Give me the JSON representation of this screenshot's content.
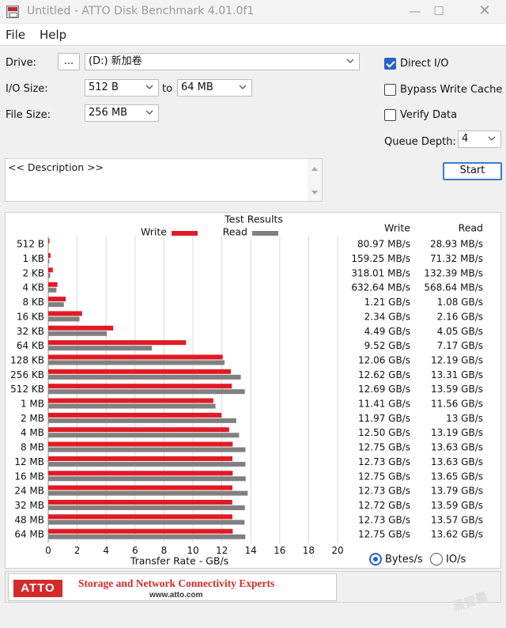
{
  "window": {
    "title": "Untitled - ATTO Disk Benchmark 4.01.0f1"
  },
  "menu": {
    "file": "File",
    "help": "Help"
  },
  "controls": {
    "drive_label": "Drive:",
    "browse_label": "...",
    "drive_value": "(D:) 新加卷",
    "io_size_label": "I/O Size:",
    "io_min": "512 B",
    "to_label": "to",
    "io_max": "64 MB",
    "file_size_label": "File Size:",
    "file_size": "256 MB",
    "direct_io": "Direct I/O",
    "bypass_write_cache": "Bypass Write Cache",
    "verify_data": "Verify Data",
    "queue_depth_label": "Queue Depth:",
    "queue_depth": "4",
    "start": "Start",
    "description": "<< Description >>"
  },
  "results": {
    "title": "Test Results",
    "legend_write": "Write",
    "legend_read": "Read",
    "col_write": "Write",
    "col_read": "Read",
    "rows": [
      {
        "size": "512 B",
        "write": "80.97 MB/s",
        "read": "28.93 MB/s"
      },
      {
        "size": "1 KB",
        "write": "159.25 MB/s",
        "read": "71.32 MB/s"
      },
      {
        "size": "2 KB",
        "write": "318.01 MB/s",
        "read": "132.39 MB/s"
      },
      {
        "size": "4 KB",
        "write": "632.64 MB/s",
        "read": "568.64 MB/s"
      },
      {
        "size": "8 KB",
        "write": "1.21 GB/s",
        "read": "1.08 GB/s"
      },
      {
        "size": "16 KB",
        "write": "2.34 GB/s",
        "read": "2.16 GB/s"
      },
      {
        "size": "32 KB",
        "write": "4.49 GB/s",
        "read": "4.05 GB/s"
      },
      {
        "size": "64 KB",
        "write": "9.52 GB/s",
        "read": "7.17 GB/s"
      },
      {
        "size": "128 KB",
        "write": "12.06 GB/s",
        "read": "12.19 GB/s"
      },
      {
        "size": "256 KB",
        "write": "12.62 GB/s",
        "read": "13.31 GB/s"
      },
      {
        "size": "512 KB",
        "write": "12.69 GB/s",
        "read": "13.59 GB/s"
      },
      {
        "size": "1 MB",
        "write": "11.41 GB/s",
        "read": "11.56 GB/s"
      },
      {
        "size": "2 MB",
        "write": "11.97 GB/s",
        "read": "13 GB/s"
      },
      {
        "size": "4 MB",
        "write": "12.50 GB/s",
        "read": "13.19 GB/s"
      },
      {
        "size": "8 MB",
        "write": "12.75 GB/s",
        "read": "13.63 GB/s"
      },
      {
        "size": "12 MB",
        "write": "12.73 GB/s",
        "read": "13.63 GB/s"
      },
      {
        "size": "16 MB",
        "write": "12.75 GB/s",
        "read": "13.65 GB/s"
      },
      {
        "size": "24 MB",
        "write": "12.73 GB/s",
        "read": "13.79 GB/s"
      },
      {
        "size": "32 MB",
        "write": "12.72 GB/s",
        "read": "13.59 GB/s"
      },
      {
        "size": "48 MB",
        "write": "12.73 GB/s",
        "read": "13.57 GB/s"
      },
      {
        "size": "64 MB",
        "write": "12.75 GB/s",
        "read": "13.62 GB/s"
      }
    ],
    "bytes_per_sec": "Bytes/s",
    "io_per_sec": "IO/s"
  },
  "chart_data": {
    "type": "bar",
    "orientation": "horizontal",
    "xlabel": "Transfer Rate - GB/s",
    "xlim": [
      0,
      20
    ],
    "xticks": [
      0,
      2,
      4,
      6,
      8,
      10,
      12,
      14,
      16,
      18,
      20
    ],
    "categories": [
      "512 B",
      "1 KB",
      "2 KB",
      "4 KB",
      "8 KB",
      "16 KB",
      "32 KB",
      "64 KB",
      "128 KB",
      "256 KB",
      "512 KB",
      "1 MB",
      "2 MB",
      "4 MB",
      "8 MB",
      "12 MB",
      "16 MB",
      "24 MB",
      "32 MB",
      "48 MB",
      "64 MB"
    ],
    "series": [
      {
        "name": "Write",
        "color": "#e01b24",
        "values": [
          0.08097,
          0.15925,
          0.31801,
          0.63264,
          1.21,
          2.34,
          4.49,
          9.52,
          12.06,
          12.62,
          12.69,
          11.41,
          11.97,
          12.5,
          12.75,
          12.73,
          12.75,
          12.73,
          12.72,
          12.73,
          12.75
        ]
      },
      {
        "name": "Read",
        "color": "#808080",
        "values": [
          0.02893,
          0.07132,
          0.13239,
          0.56864,
          1.08,
          2.16,
          4.05,
          7.17,
          12.19,
          13.31,
          13.59,
          11.56,
          13.0,
          13.19,
          13.63,
          13.63,
          13.65,
          13.79,
          13.59,
          13.57,
          13.62
        ]
      }
    ],
    "grid": true,
    "legend": "top"
  },
  "banner": {
    "logo": "ATTO",
    "tagline": "Storage and Network Connectivity Experts",
    "url": "www.atto.com"
  },
  "colors": {
    "write": "#e01b24",
    "read": "#808080",
    "accent": "#2563c9"
  }
}
